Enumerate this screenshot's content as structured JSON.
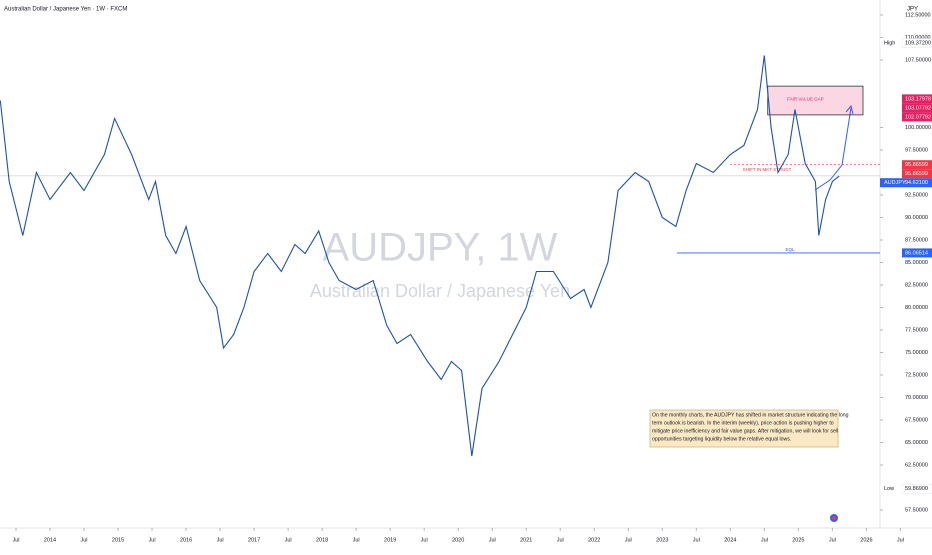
{
  "chart_data": {
    "type": "line",
    "title": "Australian Dollar / Japanese Yen · 1W · FXCM",
    "currency": "JPY",
    "watermark": "AUDJPY, 1W",
    "watermark_subtitle": "Australian Dollar / Japanese Yen",
    "x": [
      2013.27,
      2013.4,
      2013.6,
      2013.8,
      2014.0,
      2014.3,
      2014.5,
      2014.8,
      2014.95,
      2015.2,
      2015.45,
      2015.55,
      2015.7,
      2015.85,
      2016.0,
      2016.2,
      2016.45,
      2016.55,
      2016.7,
      2016.85,
      2017.0,
      2017.2,
      2017.4,
      2017.6,
      2017.75,
      2017.95,
      2018.1,
      2018.25,
      2018.5,
      2018.75,
      2018.95,
      2019.1,
      2019.3,
      2019.55,
      2019.75,
      2019.9,
      2020.05,
      2020.2,
      2020.35,
      2020.6,
      2020.8,
      2021.0,
      2021.15,
      2021.4,
      2021.65,
      2021.85,
      2021.95,
      2022.2,
      2022.35,
      2022.6,
      2022.8,
      2023.0,
      2023.2,
      2023.35,
      2023.5,
      2023.75,
      2024.0,
      2024.2,
      2024.4,
      2024.5,
      2024.6,
      2024.7,
      2024.85,
      2024.95,
      2025.1,
      2025.25,
      2025.3,
      2025.4,
      2025.5,
      2025.6
    ],
    "series": [
      {
        "name": "AUDJPY",
        "color": "#1e53a5",
        "values": [
          103,
          94,
          88,
          95,
          92,
          95,
          93,
          97,
          101,
          97,
          92,
          94,
          88,
          86,
          89,
          83,
          80,
          75.5,
          77,
          80,
          84,
          86,
          84,
          87,
          86,
          88.5,
          85,
          83,
          82,
          83,
          78,
          76,
          77,
          74,
          72,
          74,
          73,
          63.5,
          71,
          74,
          77,
          80,
          84,
          84,
          81,
          82,
          80,
          85,
          93,
          95,
          94,
          90,
          89,
          93,
          96,
          95,
          97,
          98,
          102,
          108,
          100,
          95,
          97,
          102,
          96,
          94,
          88,
          92,
          94,
          94.6
        ]
      }
    ],
    "xlim": [
      2013.265,
      2026.2
    ],
    "xticks": [
      {
        "value": 2013.5,
        "label": "Jul"
      },
      {
        "value": 2014,
        "label": "2014"
      },
      {
        "value": 2014.5,
        "label": "Jul"
      },
      {
        "value": 2015,
        "label": "2015"
      },
      {
        "value": 2015.5,
        "label": "Jul"
      },
      {
        "value": 2016,
        "label": "2016"
      },
      {
        "value": 2016.5,
        "label": "Jul"
      },
      {
        "value": 2017,
        "label": "2017"
      },
      {
        "value": 2017.5,
        "label": "Jul"
      },
      {
        "value": 2018,
        "label": "2018"
      },
      {
        "value": 2018.5,
        "label": "Jul"
      },
      {
        "value": 2019,
        "label": "2019"
      },
      {
        "value": 2019.5,
        "label": "Jul"
      },
      {
        "value": 2020,
        "label": "2020"
      },
      {
        "value": 2020.5,
        "label": "Jul"
      },
      {
        "value": 2021,
        "label": "2021"
      },
      {
        "value": 2021.5,
        "label": "Jul"
      },
      {
        "value": 2022,
        "label": "2022"
      },
      {
        "value": 2022.5,
        "label": "Jul"
      },
      {
        "value": 2023,
        "label": "2023"
      },
      {
        "value": 2023.5,
        "label": "Jul"
      },
      {
        "value": 2024,
        "label": "2024"
      },
      {
        "value": 2024.5,
        "label": "Jul"
      },
      {
        "value": 2025,
        "label": "2025"
      },
      {
        "value": 2025.5,
        "label": "Jul"
      },
      {
        "value": 2026,
        "label": "2026"
      },
      {
        "value": 2026.5,
        "label": "Jul"
      }
    ],
    "ylim": [
      55.8333,
      114.1667
    ],
    "yticks": [
      {
        "value": 57.5,
        "label": "57.50000"
      },
      {
        "value": 62.5,
        "label": "62.50000"
      },
      {
        "value": 65,
        "label": "65.00000"
      },
      {
        "value": 67.5,
        "label": "67.50000"
      },
      {
        "value": 70,
        "label": "70.00000"
      },
      {
        "value": 72.5,
        "label": "72.50000"
      },
      {
        "value": 75,
        "label": "75.00000"
      },
      {
        "value": 77.5,
        "label": "77.50000"
      },
      {
        "value": 80,
        "label": "80.00000"
      },
      {
        "value": 82.5,
        "label": "82.50000"
      },
      {
        "value": 85,
        "label": "85.00000"
      },
      {
        "value": 87.5,
        "label": "87.50000"
      },
      {
        "value": 90,
        "label": "90.00000"
      },
      {
        "value": 92.5,
        "label": "92.50000"
      },
      {
        "value": 97.5,
        "label": "97.50000"
      },
      {
        "value": 100,
        "label": "100.00000"
      },
      {
        "value": 107.5,
        "label": "107.50000"
      },
      {
        "value": 110,
        "label": "110.00000"
      },
      {
        "value": 112.5,
        "label": "112.50000"
      }
    ],
    "price_tags": [
      {
        "name": "High",
        "value": 109.372,
        "label": "109.37200",
        "color": "#ffffff"
      },
      {
        "value": 103.17978,
        "label": "103.17978",
        "color": "#e91e63"
      },
      {
        "value": 103.07792,
        "label": "103.07792",
        "color": "#e91e63"
      },
      {
        "value": 102.07792,
        "label": "102.07792",
        "color": "#e91e63"
      },
      {
        "value": 95.86599,
        "label": "95.86599",
        "color": "#f23645"
      },
      {
        "value": 95.86599,
        "label": "95.86599",
        "color": "#f23645"
      },
      {
        "name": "AUDJPY",
        "value": 94.621,
        "label": "94.62100",
        "color": "#2962ff"
      },
      {
        "value": 86.06514,
        "label": "86.06514",
        "color": "#2962ff"
      },
      {
        "name": "Low",
        "value": 59.869,
        "label": "59.86900",
        "color": "#ffffff"
      }
    ],
    "zones": [
      {
        "label": "FAIR VALUE GAP",
        "x": [
          2024.55,
          2025.95
        ],
        "y": [
          101.4,
          104.6
        ]
      }
    ],
    "annotations": [
      "EQL",
      "SHIFT IN MKT STRUCT"
    ],
    "note": [
      "On the monthly charts, the AUDJPY has shifted in market structure indicating the long",
      "term outlook is bearish. In the interim (weekly), price action is pushing higher to",
      "mitigate price inefficiency and fair value gaps. After mitigation, we will look for sell",
      "opportunities targeting liquidity below the relative equal lows."
    ]
  }
}
